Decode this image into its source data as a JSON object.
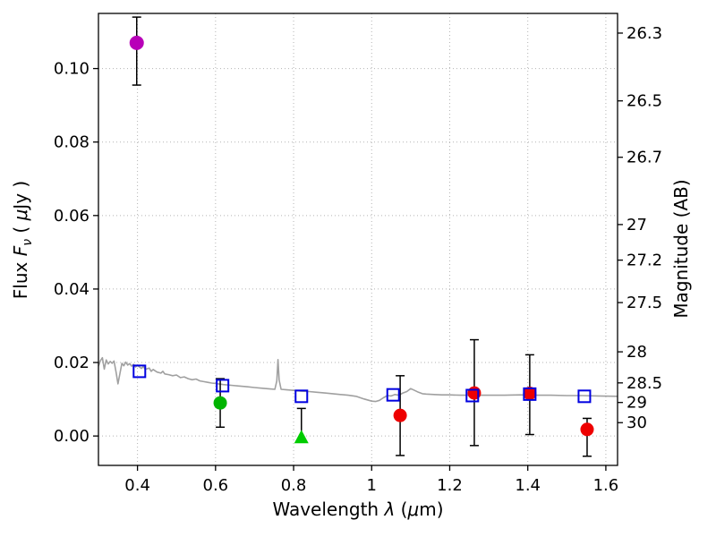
{
  "figure": {
    "background": "#ffffff",
    "frame_color": "#000000",
    "grid_color": "#b3b3b3"
  },
  "chart_data": {
    "type": "scatter",
    "title": "",
    "xlabel": "Wavelength  λ (μm)",
    "ylabel": "Flux  Fν  ( μJy )",
    "ylabel_right": "Magnitude (AB)",
    "grid": "dotted",
    "legend": "none",
    "x_axis": {
      "range": [
        0.3,
        1.63
      ],
      "ticks": [
        "0.4",
        "0.6",
        "0.8",
        "1",
        "1.2",
        "1.4",
        "1.6"
      ],
      "label_parts": [
        "Wavelength  ",
        "λ",
        " (",
        "μ",
        "m)"
      ]
    },
    "y_left": {
      "range": [
        -0.008,
        0.115
      ],
      "ticks": [
        "0.00",
        "0.02",
        "0.04",
        "0.06",
        "0.08",
        "0.10"
      ],
      "label_parts": [
        "Flux  ",
        "F",
        "ν",
        "  ( ",
        "μ",
        "Jy )"
      ]
    },
    "y_right": {
      "label": "Magnitude (AB)",
      "ticks": [
        "26.3",
        "26.5",
        "26.7",
        "27",
        "27.2",
        "27.5",
        "28",
        "28.5",
        "29",
        "30"
      ],
      "flux_zeropoint": 23.9
    },
    "spectrum": {
      "name": "model-spectrum",
      "color": "#a0a0a0",
      "points": [
        [
          0.3,
          0.019
        ],
        [
          0.305,
          0.0205
        ],
        [
          0.31,
          0.0213
        ],
        [
          0.315,
          0.0182
        ],
        [
          0.32,
          0.0207
        ],
        [
          0.325,
          0.0196
        ],
        [
          0.33,
          0.0203
        ],
        [
          0.335,
          0.0198
        ],
        [
          0.34,
          0.0204
        ],
        [
          0.345,
          0.0175
        ],
        [
          0.35,
          0.0142
        ],
        [
          0.355,
          0.017
        ],
        [
          0.36,
          0.0198
        ],
        [
          0.365,
          0.0191
        ],
        [
          0.37,
          0.0201
        ],
        [
          0.375,
          0.0193
        ],
        [
          0.38,
          0.0197
        ],
        [
          0.385,
          0.019
        ],
        [
          0.39,
          0.0195
        ],
        [
          0.395,
          0.0188
        ],
        [
          0.4,
          0.0192
        ],
        [
          0.41,
          0.0184
        ],
        [
          0.415,
          0.0189
        ],
        [
          0.42,
          0.0181
        ],
        [
          0.43,
          0.0185
        ],
        [
          0.435,
          0.0176
        ],
        [
          0.44,
          0.0181
        ],
        [
          0.45,
          0.0174
        ],
        [
          0.46,
          0.0171
        ],
        [
          0.465,
          0.0176
        ],
        [
          0.47,
          0.0169
        ],
        [
          0.48,
          0.0167
        ],
        [
          0.49,
          0.0164
        ],
        [
          0.5,
          0.0166
        ],
        [
          0.51,
          0.0159
        ],
        [
          0.52,
          0.0161
        ],
        [
          0.53,
          0.0156
        ],
        [
          0.54,
          0.0153
        ],
        [
          0.55,
          0.0155
        ],
        [
          0.56,
          0.015
        ],
        [
          0.57,
          0.0148
        ],
        [
          0.58,
          0.0146
        ],
        [
          0.59,
          0.0144
        ],
        [
          0.6,
          0.0143
        ],
        [
          0.62,
          0.014
        ],
        [
          0.64,
          0.0138
        ],
        [
          0.66,
          0.0136
        ],
        [
          0.68,
          0.0134
        ],
        [
          0.7,
          0.0132
        ],
        [
          0.72,
          0.013
        ],
        [
          0.74,
          0.0128
        ],
        [
          0.752,
          0.0127
        ],
        [
          0.757,
          0.015
        ],
        [
          0.76,
          0.0208
        ],
        [
          0.763,
          0.0152
        ],
        [
          0.768,
          0.0127
        ],
        [
          0.78,
          0.0126
        ],
        [
          0.8,
          0.0124
        ],
        [
          0.82,
          0.0122
        ],
        [
          0.84,
          0.0121
        ],
        [
          0.86,
          0.0119
        ],
        [
          0.88,
          0.0117
        ],
        [
          0.9,
          0.0115
        ],
        [
          0.92,
          0.0113
        ],
        [
          0.94,
          0.0111
        ],
        [
          0.96,
          0.0108
        ],
        [
          0.98,
          0.0101
        ],
        [
          1.0,
          0.0095
        ],
        [
          1.01,
          0.0094
        ],
        [
          1.02,
          0.0097
        ],
        [
          1.03,
          0.0104
        ],
        [
          1.04,
          0.011
        ],
        [
          1.05,
          0.0109
        ],
        [
          1.06,
          0.0113
        ],
        [
          1.07,
          0.0111
        ],
        [
          1.08,
          0.0117
        ],
        [
          1.09,
          0.0121
        ],
        [
          1.1,
          0.0129
        ],
        [
          1.11,
          0.0124
        ],
        [
          1.12,
          0.0119
        ],
        [
          1.13,
          0.0115
        ],
        [
          1.14,
          0.0114
        ],
        [
          1.16,
          0.0113
        ],
        [
          1.18,
          0.0112
        ],
        [
          1.2,
          0.0112
        ],
        [
          1.23,
          0.0111
        ],
        [
          1.26,
          0.0111
        ],
        [
          1.3,
          0.0111
        ],
        [
          1.34,
          0.0111
        ],
        [
          1.38,
          0.0112
        ],
        [
          1.42,
          0.0111
        ],
        [
          1.46,
          0.0111
        ],
        [
          1.5,
          0.011
        ],
        [
          1.54,
          0.011
        ],
        [
          1.58,
          0.0109
        ],
        [
          1.63,
          0.0108
        ]
      ]
    },
    "series": [
      {
        "name": "purple-photometry",
        "marker": "circle",
        "color": "#b800b8",
        "size": 8,
        "points": [
          {
            "x": 0.398,
            "y": 0.107,
            "ep": 0.007,
            "em": 0.0115
          }
        ]
      },
      {
        "name": "green-photometry",
        "marker": "circle",
        "color": "#00b400",
        "size": 7.5,
        "points": [
          {
            "x": 0.612,
            "y": 0.009,
            "ep": 0.0066,
            "em": 0.0066
          }
        ]
      },
      {
        "name": "green-upper-limit",
        "marker": "triangle-up",
        "color": "#00cc00",
        "size": 8,
        "points": [
          {
            "x": 0.82,
            "y": -0.0005,
            "ep": 0.008,
            "em": 0
          }
        ]
      },
      {
        "name": "red-photometry",
        "marker": "circle",
        "color": "#ee0000",
        "size": 7.5,
        "points": [
          {
            "x": 1.073,
            "y": 0.0056,
            "ep": 0.0108,
            "em": 0.0109
          },
          {
            "x": 1.263,
            "y": 0.0117,
            "ep": 0.0145,
            "em": 0.0143
          },
          {
            "x": 1.405,
            "y": 0.0116,
            "ep": 0.0105,
            "em": 0.0112
          },
          {
            "x": 1.552,
            "y": 0.0018,
            "ep": 0.003,
            "em": 0.0073
          }
        ]
      },
      {
        "name": "model-photometry",
        "marker": "square-open",
        "color": "#0000e0",
        "size": 13,
        "points": [
          {
            "x": 0.405,
            "y": 0.0176
          },
          {
            "x": 0.618,
            "y": 0.0137
          },
          {
            "x": 0.82,
            "y": 0.0108
          },
          {
            "x": 1.055,
            "y": 0.0112
          },
          {
            "x": 1.258,
            "y": 0.011
          },
          {
            "x": 1.405,
            "y": 0.0114
          },
          {
            "x": 1.545,
            "y": 0.0108
          }
        ]
      }
    ]
  }
}
